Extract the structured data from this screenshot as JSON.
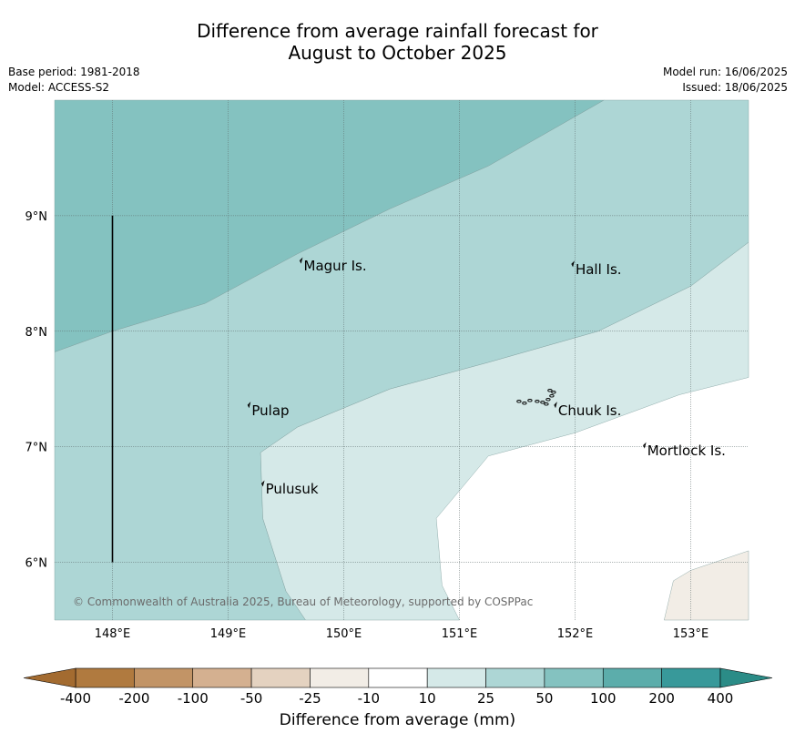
{
  "title": {
    "line1": "Difference from average rainfall forecast for",
    "line2": "August to October 2025"
  },
  "meta": {
    "base_period": "Base period: 1981-2018",
    "model": "Model: ACCESS-S2",
    "model_run": "Model run: 16/06/2025",
    "issued": "Issued: 18/06/2025"
  },
  "map": {
    "lon_range": [
      147.5,
      153.5
    ],
    "lat_range": [
      5.5,
      10.0
    ],
    "lat_ticks": [
      {
        "value": 9,
        "label": "9°N"
      },
      {
        "value": 8,
        "label": "8°N"
      },
      {
        "value": 7,
        "label": "7°N"
      },
      {
        "value": 6,
        "label": "6°N"
      }
    ],
    "lon_ticks": [
      {
        "value": 148,
        "label": "148°E"
      },
      {
        "value": 149,
        "label": "149°E"
      },
      {
        "value": 150,
        "label": "150°E"
      },
      {
        "value": 151,
        "label": "151°E"
      },
      {
        "value": 152,
        "label": "152°E"
      },
      {
        "value": 153,
        "label": "153°E"
      }
    ],
    "places": [
      {
        "name": "Magur Is.",
        "lon": 149.63,
        "lat": 8.58
      },
      {
        "name": "Hall Is.",
        "lon": 151.98,
        "lat": 8.55
      },
      {
        "name": "Pulap",
        "lon": 149.18,
        "lat": 7.33
      },
      {
        "name": "Chuuk Is.",
        "lon": 151.83,
        "lat": 7.33
      },
      {
        "name": "Mortlock Is.",
        "lon": 152.6,
        "lat": 6.98
      },
      {
        "name": "Pulusuk",
        "lon": 149.3,
        "lat": 6.65
      }
    ],
    "copyright": "© Commonwealth of Australia 2025, Bureau of Meteorology, supported by COSPPac",
    "regions": [
      {
        "category": "50 to 100",
        "color": "#84c2c0",
        "polygon": [
          [
            147.5,
            7.82
          ],
          [
            148.0,
            8.0
          ],
          [
            148.8,
            8.24
          ],
          [
            149.6,
            8.67
          ],
          [
            150.4,
            9.06
          ],
          [
            151.25,
            9.43
          ],
          [
            152.25,
            10.0
          ],
          [
            147.5,
            10.0
          ]
        ]
      },
      {
        "category": "25 to 50",
        "color": "#add6d5",
        "polygon": [
          [
            147.5,
            5.5
          ],
          [
            149.67,
            5.5
          ],
          [
            149.5,
            5.75
          ],
          [
            149.3,
            6.38
          ],
          [
            149.28,
            6.95
          ],
          [
            149.6,
            7.17
          ],
          [
            150.4,
            7.5
          ],
          [
            151.25,
            7.73
          ],
          [
            152.2,
            8.0
          ],
          [
            153.0,
            8.39
          ],
          [
            153.5,
            8.77
          ],
          [
            153.5,
            10.0
          ],
          [
            152.25,
            10.0
          ],
          [
            151.25,
            9.43
          ],
          [
            150.4,
            9.06
          ],
          [
            149.6,
            8.67
          ],
          [
            148.8,
            8.24
          ],
          [
            148.0,
            8.0
          ],
          [
            147.5,
            7.82
          ]
        ]
      },
      {
        "category": "10 to 25",
        "color": "#d5e9e8",
        "polygon": [
          [
            149.67,
            5.5
          ],
          [
            151.0,
            5.5
          ],
          [
            150.85,
            5.8
          ],
          [
            150.8,
            6.38
          ],
          [
            151.25,
            6.92
          ],
          [
            152.0,
            7.12
          ],
          [
            152.9,
            7.45
          ],
          [
            153.5,
            7.6
          ],
          [
            153.5,
            8.77
          ],
          [
            153.0,
            8.39
          ],
          [
            152.2,
            8.0
          ],
          [
            151.25,
            7.73
          ],
          [
            150.4,
            7.5
          ],
          [
            149.6,
            7.17
          ],
          [
            149.28,
            6.95
          ],
          [
            149.3,
            6.38
          ],
          [
            149.5,
            5.75
          ]
        ]
      },
      {
        "category": "-25 to -10",
        "color": "#f2ede6",
        "polygon": [
          [
            152.77,
            5.5
          ],
          [
            152.85,
            5.84
          ],
          [
            153.0,
            5.93
          ],
          [
            153.5,
            6.1
          ],
          [
            153.5,
            5.5
          ]
        ]
      }
    ],
    "black_line": {
      "lon": 148.0,
      "lat_from": 6.0,
      "lat_to": 9.0
    }
  },
  "colorbar": {
    "label": "Difference from average (mm)",
    "ticks": [
      "-400",
      "-200",
      "-100",
      "-50",
      "-25",
      "-10",
      "10",
      "25",
      "50",
      "100",
      "200",
      "400"
    ],
    "low_extend_color": "#a36b30",
    "high_extend_color": "#2b8c87",
    "colors": [
      "#b07a3f",
      "#c29466",
      "#d4b090",
      "#e4d2c0",
      "#f2ede6",
      "#ffffff",
      "#d5e9e8",
      "#add6d5",
      "#84c2c0",
      "#5cadab",
      "#38999a"
    ]
  }
}
